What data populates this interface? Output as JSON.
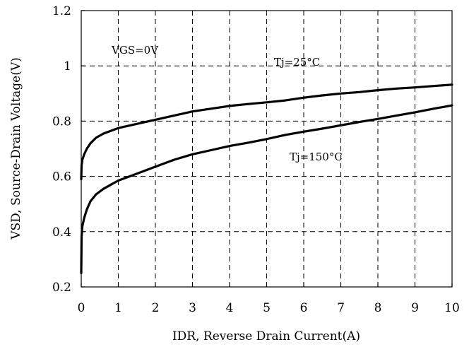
{
  "chart_data": {
    "type": "line",
    "xlabel": "IDR, Reverse Drain Current(A)",
    "ylabel": "VSD, Source-Drain Voltage(V)",
    "xlim": [
      0,
      10
    ],
    "ylim": [
      0.2,
      1.2
    ],
    "xticks": [
      "0",
      "1",
      "2",
      "3",
      "4",
      "5",
      "6",
      "7",
      "8",
      "9",
      "10"
    ],
    "yticks": [
      "0.2",
      "0.4",
      "0.6",
      "0.8",
      "1",
      "1.2"
    ],
    "grid": true,
    "annotations": {
      "vgs": "VGS=0V",
      "tj25": "Tj=25°C",
      "tj150": "Tj=150°C"
    },
    "series": [
      {
        "name": "Tj=25°C",
        "x": [
          0,
          0.01,
          0.03,
          0.08,
          0.15,
          0.25,
          0.4,
          0.6,
          0.8,
          1.0,
          1.5,
          2.0,
          2.5,
          3.0,
          3.5,
          4.0,
          4.5,
          5.0,
          5.5,
          6.0,
          6.5,
          7.0,
          7.5,
          8.0,
          8.5,
          9.0,
          9.5,
          10.0
        ],
        "values": [
          0.59,
          0.64,
          0.66,
          0.68,
          0.7,
          0.72,
          0.74,
          0.755,
          0.765,
          0.775,
          0.79,
          0.805,
          0.82,
          0.835,
          0.845,
          0.855,
          0.862,
          0.868,
          0.875,
          0.885,
          0.893,
          0.9,
          0.905,
          0.912,
          0.918,
          0.922,
          0.927,
          0.932
        ]
      },
      {
        "name": "Tj=150°C",
        "x": [
          0,
          0.01,
          0.03,
          0.08,
          0.15,
          0.25,
          0.4,
          0.6,
          0.8,
          1.0,
          1.5,
          2.0,
          2.5,
          3.0,
          3.5,
          4.0,
          4.5,
          5.0,
          5.5,
          6.0,
          6.5,
          7.0,
          7.5,
          8.0,
          8.5,
          9.0,
          9.5,
          10.0
        ],
        "values": [
          0.25,
          0.38,
          0.42,
          0.45,
          0.48,
          0.51,
          0.535,
          0.555,
          0.57,
          0.585,
          0.61,
          0.635,
          0.66,
          0.68,
          0.695,
          0.71,
          0.722,
          0.735,
          0.75,
          0.762,
          0.773,
          0.785,
          0.797,
          0.808,
          0.82,
          0.832,
          0.845,
          0.857
        ]
      }
    ]
  }
}
